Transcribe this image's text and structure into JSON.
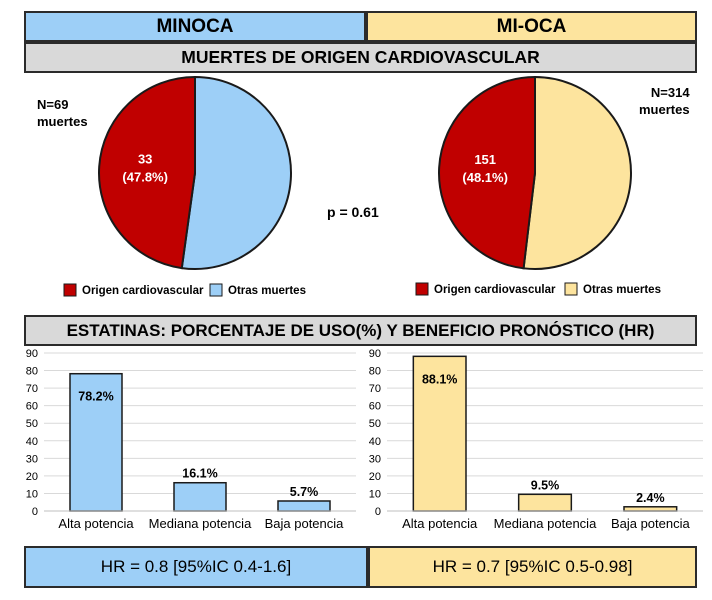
{
  "header": {
    "left_title": "MINOCA",
    "right_title": "MI-OCA"
  },
  "section_cv": {
    "title": "MUERTES DE ORIGEN CARDIOVASCULAR",
    "p_value": "p = 0.61"
  },
  "section_statins": {
    "title": "ESTATINAS: PORCENTAJE DE USO(%) Y BENEFICIO PRONÓSTICO (HR)"
  },
  "hr": {
    "minoca": "HR = 0.8 [95%IC 0.4-1.6]",
    "mioca": "HR = 0.7 [95%IC 0.5-0.98]"
  },
  "colors": {
    "cardio": "#c00000",
    "minoca_other": "#9dcff7",
    "mioca_other": "#fde49e",
    "outline": "#1a1a1a"
  },
  "chart_data": [
    {
      "type": "pie",
      "group": "MINOCA",
      "n_label": "N=69",
      "n_sublabel": "muertes",
      "slices": [
        {
          "label": "Origen cardiovascular",
          "value": 47.8,
          "count_label": "33",
          "pct_label": "(47.8%)"
        },
        {
          "label": "Otras muertes",
          "value": 52.2
        }
      ],
      "legend": [
        "Origen cardiovascular",
        "Otras muertes"
      ]
    },
    {
      "type": "pie",
      "group": "MI-OCA",
      "n_label": "N=314",
      "n_sublabel": "muertes",
      "slices": [
        {
          "label": "Origen cardiovascular",
          "value": 48.1,
          "count_label": "151",
          "pct_label": "(48.1%)"
        },
        {
          "label": "Otras muertes",
          "value": 51.9
        }
      ],
      "legend": [
        "Origen cardiovascular",
        "Otras muertes"
      ]
    },
    {
      "type": "bar",
      "group": "MINOCA",
      "categories": [
        "Alta potencia",
        "Mediana potencia",
        "Baja potencia"
      ],
      "values": [
        78.2,
        16.1,
        5.7
      ],
      "value_labels": [
        "78.2%",
        "16.1%",
        "5.7%"
      ],
      "ylim": [
        0,
        90
      ],
      "yticks": [
        0,
        10,
        20,
        30,
        40,
        50,
        60,
        70,
        80,
        90
      ],
      "grid": true
    },
    {
      "type": "bar",
      "group": "MI-OCA",
      "categories": [
        "Alta potencia",
        "Mediana potencia",
        "Baja potencia"
      ],
      "values": [
        88.1,
        9.5,
        2.4
      ],
      "value_labels": [
        "88.1%",
        "9.5%",
        "2.4%"
      ],
      "ylim": [
        0,
        90
      ],
      "yticks": [
        0,
        10,
        20,
        30,
        40,
        50,
        60,
        70,
        80,
        90
      ],
      "grid": true
    }
  ]
}
